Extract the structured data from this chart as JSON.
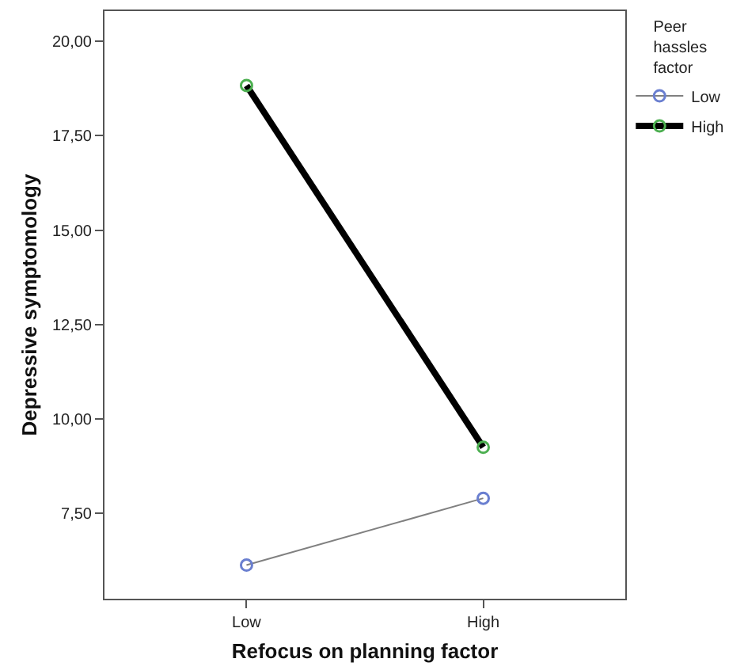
{
  "chart_data": {
    "type": "line",
    "xlabel": "Refocus on planning factor",
    "ylabel": "Depressive symptomology",
    "legend_title": "Peer hassles factor",
    "categories": [
      "Low",
      "High"
    ],
    "series": [
      {
        "name": "Low",
        "color": "#808080",
        "colors": [
          "#6a7fd0",
          "#6a7fd0"
        ],
        "values": [
          6.13,
          7.9
        ]
      },
      {
        "name": "High",
        "color": "#000000",
        "colors": [
          "#4caf50",
          "#4caf50"
        ],
        "values": [
          18.83,
          9.25
        ]
      }
    ],
    "ylim": [
      5.24,
      20.8
    ],
    "yticks": [
      {
        "value": 7.5,
        "label": "7,50"
      },
      {
        "value": 10,
        "label": "10,00"
      },
      {
        "value": 12.5,
        "label": "12,50"
      },
      {
        "value": 15,
        "label": "15,00"
      },
      {
        "value": 17.5,
        "label": "17,50"
      },
      {
        "value": 20,
        "label": "20,00"
      }
    ],
    "marker": "circle",
    "grid": false,
    "legend": "top right"
  }
}
